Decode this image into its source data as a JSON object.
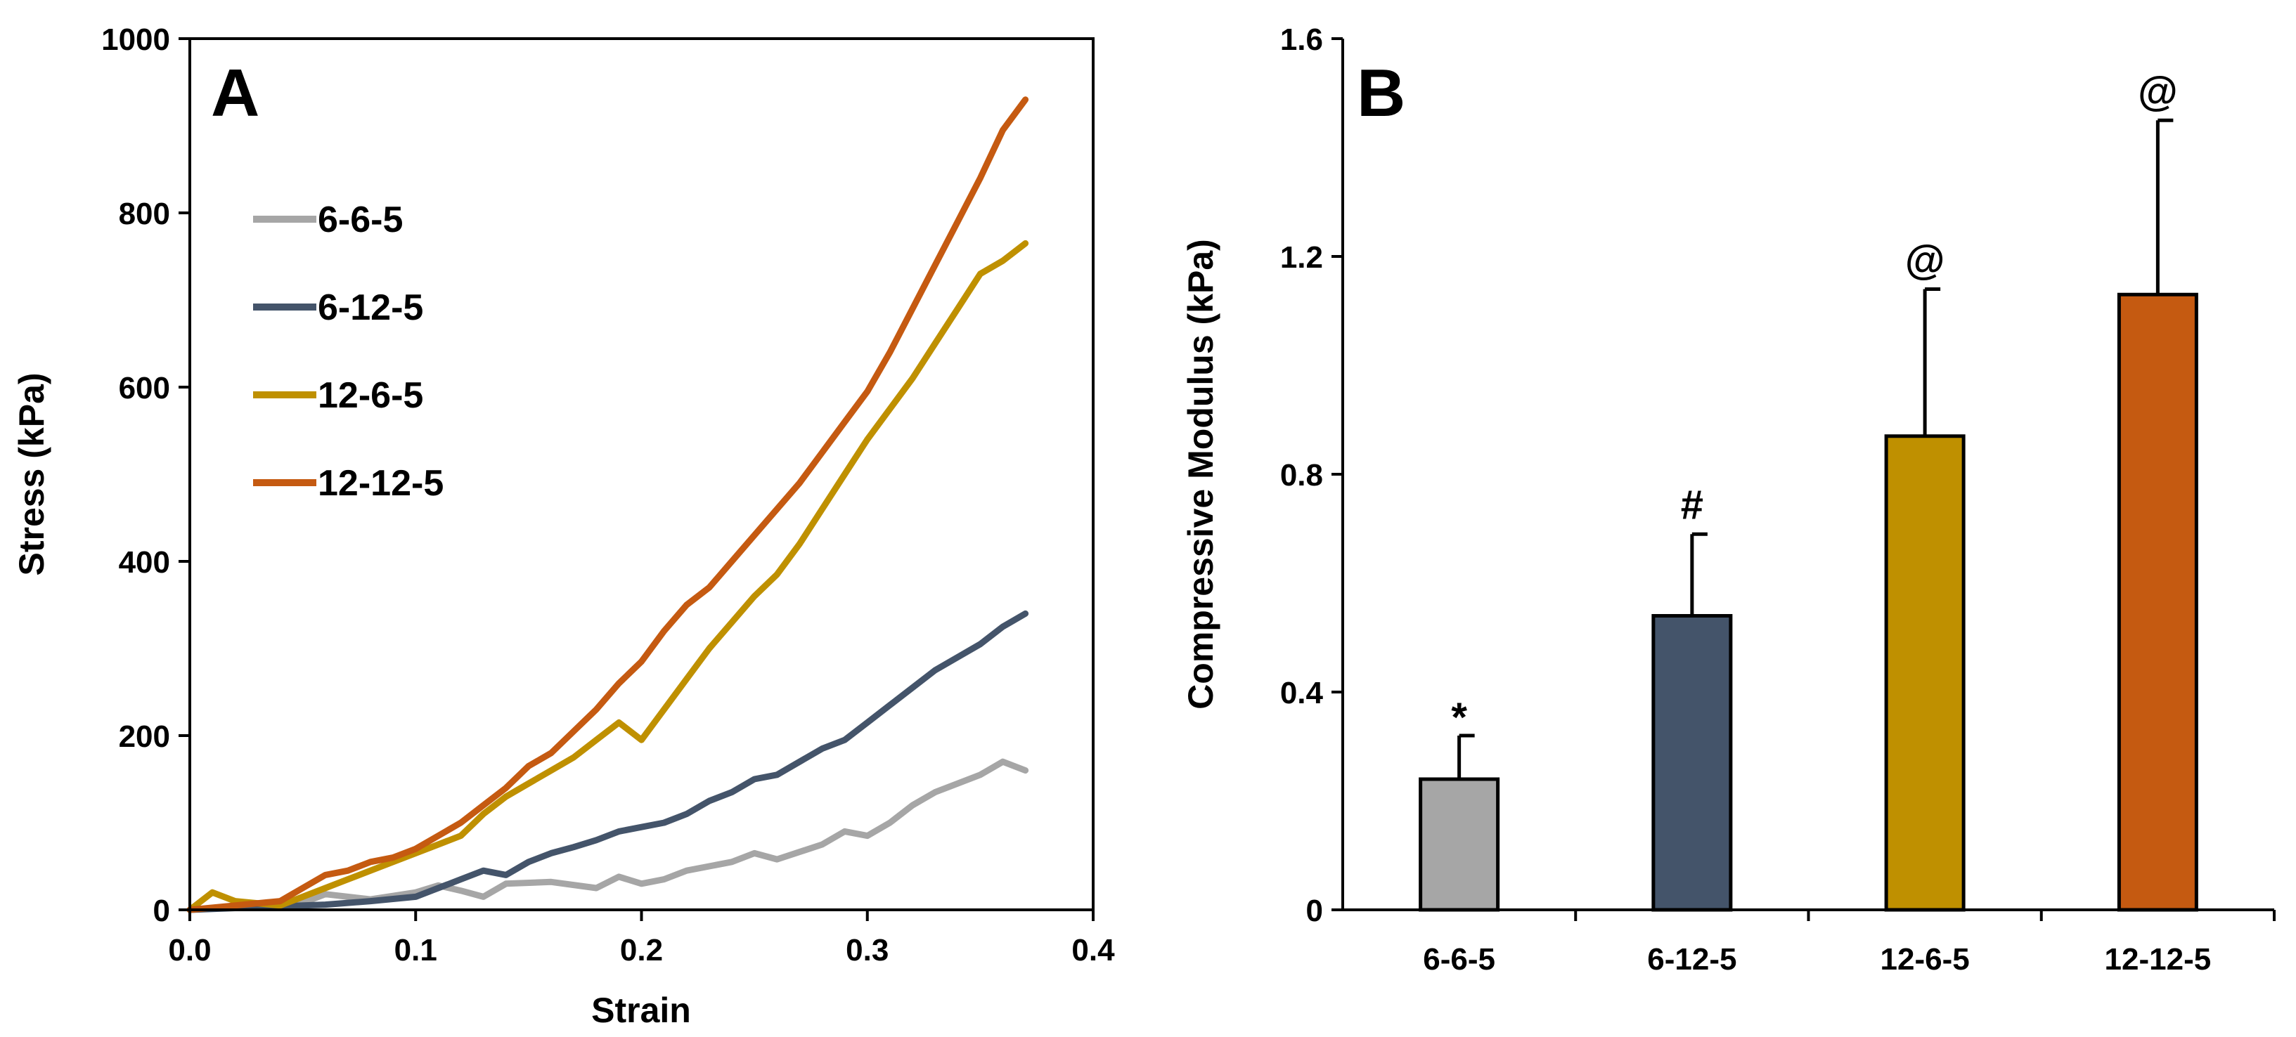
{
  "colors": {
    "6-6-5": "#a6a6a6",
    "6-12-5": "#44546a",
    "12-6-5": "#bf9000",
    "12-12-5": "#c55a11"
  },
  "chart_data": [
    {
      "panel": "A",
      "type": "line",
      "xlabel": "Strain",
      "ylabel": "Stress (kPa)",
      "xlim": [
        0,
        0.4
      ],
      "ylim": [
        0,
        1000
      ],
      "xticks": [
        "0.0",
        "0.1",
        "0.2",
        "0.3",
        "0.4"
      ],
      "yticks": [
        "0",
        "200",
        "400",
        "600",
        "800",
        "1000"
      ],
      "legend_position": "upper-left",
      "series": [
        {
          "name": "6-6-5",
          "x": [
            0,
            0.02,
            0.04,
            0.05,
            0.06,
            0.08,
            0.1,
            0.11,
            0.12,
            0.13,
            0.14,
            0.16,
            0.18,
            0.19,
            0.2,
            0.21,
            0.22,
            0.24,
            0.25,
            0.26,
            0.28,
            0.29,
            0.3,
            0.31,
            0.32,
            0.33,
            0.34,
            0.35,
            0.36,
            0.37
          ],
          "y": [
            0,
            3,
            5,
            8,
            18,
            12,
            20,
            28,
            22,
            15,
            30,
            32,
            25,
            38,
            30,
            35,
            45,
            55,
            65,
            58,
            75,
            90,
            85,
            100,
            120,
            135,
            145,
            155,
            170,
            160
          ]
        },
        {
          "name": "6-12-5",
          "x": [
            0,
            0.02,
            0.04,
            0.06,
            0.08,
            0.1,
            0.11,
            0.12,
            0.13,
            0.14,
            0.15,
            0.16,
            0.17,
            0.18,
            0.19,
            0.2,
            0.21,
            0.22,
            0.23,
            0.24,
            0.25,
            0.26,
            0.27,
            0.28,
            0.29,
            0.3,
            0.31,
            0.32,
            0.33,
            0.34,
            0.35,
            0.36,
            0.37
          ],
          "y": [
            0,
            2,
            4,
            6,
            10,
            15,
            25,
            35,
            45,
            40,
            55,
            65,
            72,
            80,
            90,
            95,
            100,
            110,
            125,
            135,
            150,
            155,
            170,
            185,
            195,
            215,
            235,
            255,
            275,
            290,
            305,
            325,
            340
          ]
        },
        {
          "name": "12-6-5",
          "x": [
            0,
            0.01,
            0.02,
            0.04,
            0.05,
            0.06,
            0.07,
            0.08,
            0.09,
            0.1,
            0.11,
            0.12,
            0.13,
            0.14,
            0.15,
            0.16,
            0.17,
            0.18,
            0.19,
            0.2,
            0.21,
            0.22,
            0.23,
            0.24,
            0.25,
            0.26,
            0.27,
            0.28,
            0.29,
            0.3,
            0.31,
            0.32,
            0.33,
            0.34,
            0.35,
            0.36,
            0.37
          ],
          "y": [
            0,
            20,
            10,
            5,
            15,
            25,
            35,
            45,
            55,
            65,
            75,
            85,
            110,
            130,
            145,
            160,
            175,
            195,
            215,
            195,
            230,
            265,
            300,
            330,
            360,
            385,
            420,
            460,
            500,
            540,
            575,
            610,
            650,
            690,
            730,
            745,
            765
          ]
        },
        {
          "name": "12-12-5",
          "x": [
            0,
            0.02,
            0.04,
            0.05,
            0.06,
            0.07,
            0.08,
            0.09,
            0.1,
            0.11,
            0.12,
            0.13,
            0.14,
            0.15,
            0.16,
            0.17,
            0.18,
            0.19,
            0.2,
            0.21,
            0.22,
            0.23,
            0.24,
            0.25,
            0.26,
            0.27,
            0.28,
            0.29,
            0.3,
            0.31,
            0.32,
            0.33,
            0.34,
            0.35,
            0.36,
            0.37
          ],
          "y": [
            0,
            5,
            10,
            25,
            40,
            45,
            55,
            60,
            70,
            85,
            100,
            120,
            140,
            165,
            180,
            205,
            230,
            260,
            285,
            320,
            350,
            370,
            400,
            430,
            460,
            490,
            525,
            560,
            595,
            640,
            690,
            740,
            790,
            840,
            895,
            930
          ]
        }
      ]
    },
    {
      "panel": "B",
      "type": "bar",
      "ylabel": "Compressive Modulus  (kPa)",
      "ylim": [
        0,
        1.6
      ],
      "yticks": [
        "0",
        "0.4",
        "0.8",
        "1.2",
        "1.6"
      ],
      "categories": [
        "6-6-5",
        "6-12-5",
        "12-6-5",
        "12-12-5"
      ],
      "values": [
        0.24,
        0.54,
        0.87,
        1.13
      ],
      "errors": [
        0.08,
        0.15,
        0.27,
        0.32
      ],
      "annotations": [
        "*",
        "#",
        "@",
        "@"
      ]
    }
  ],
  "panel_labels": {
    "a": "A",
    "b": "B"
  }
}
